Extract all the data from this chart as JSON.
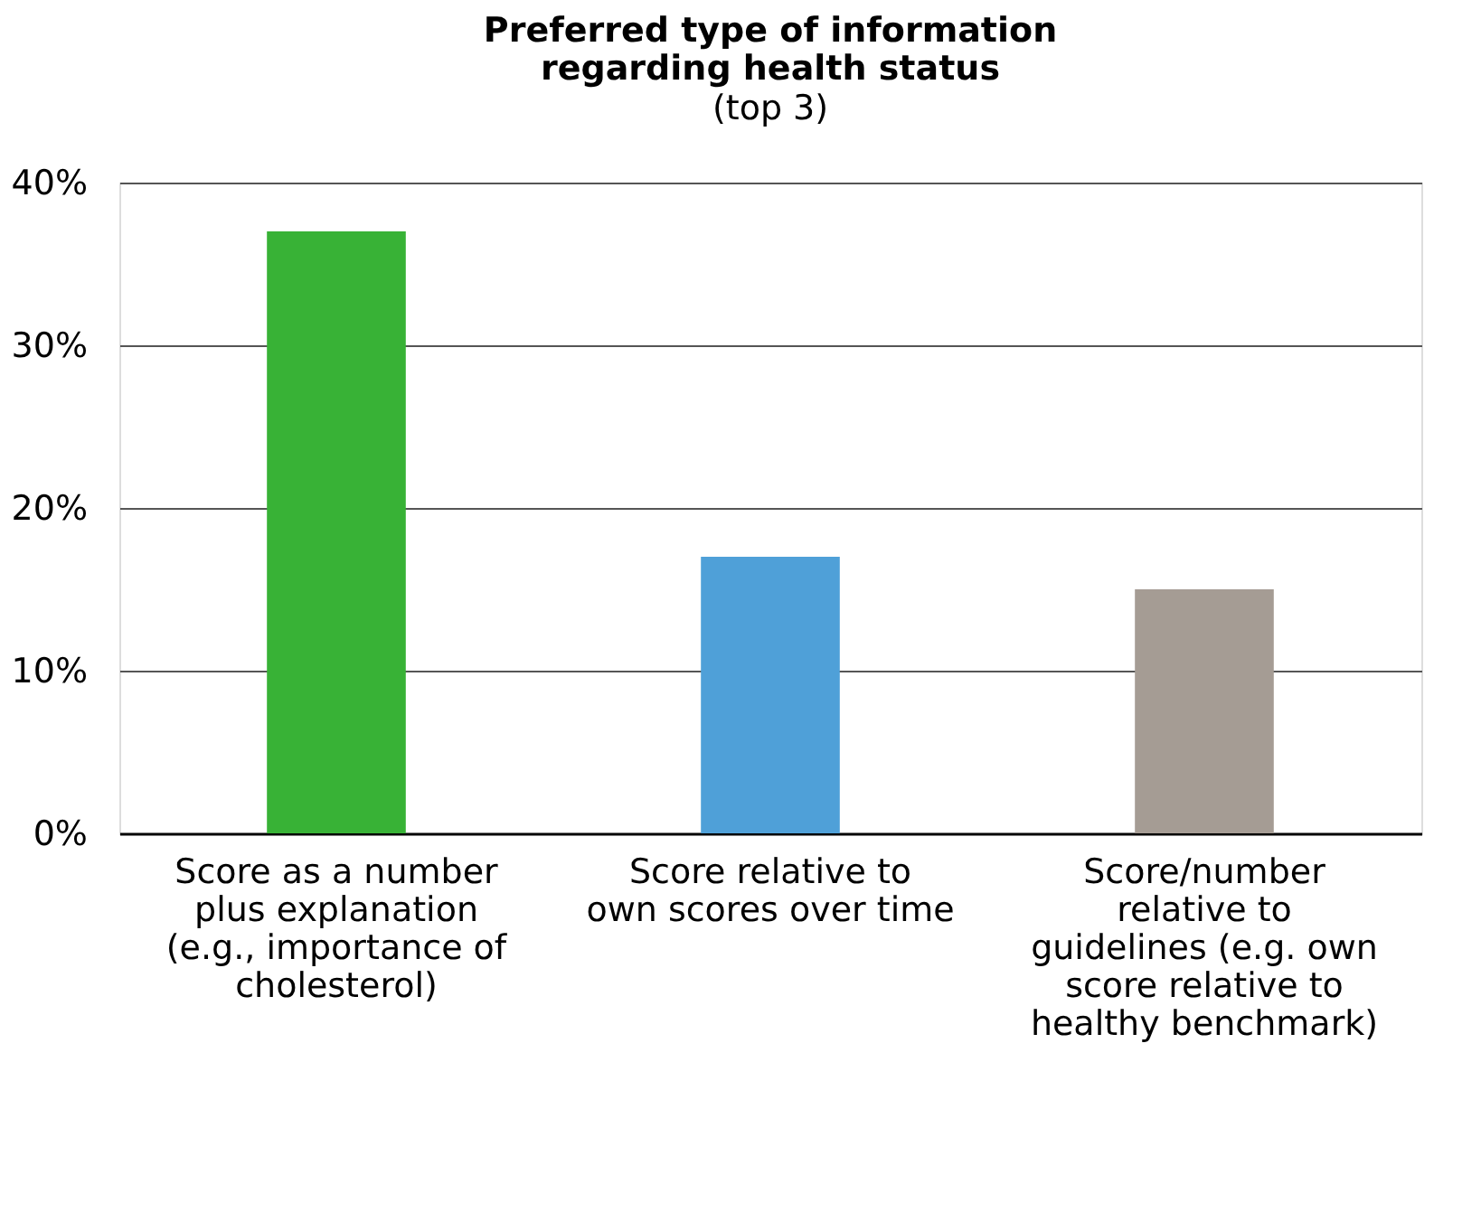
{
  "chart_data": {
    "type": "bar",
    "title": "Preferred type of information regarding health status",
    "subtitle": "(top 3)",
    "categories": [
      "Score as a number plus explanation (e.g., importance of cholesterol)",
      "Score relative to own scores over time",
      "Score/number relative to guidelines (e.g. own score relative to healthy benchmark)"
    ],
    "values": [
      37,
      17,
      15
    ],
    "colors": [
      "#38b236",
      "#4fa0d8",
      "#a59c94"
    ],
    "ylim": [
      0,
      40
    ],
    "yticks": [
      {
        "value": 0,
        "label": "0%"
      },
      {
        "value": 10,
        "label": "10%"
      },
      {
        "value": 20,
        "label": "20%"
      },
      {
        "value": 30,
        "label": "30%"
      },
      {
        "value": 40,
        "label": "40%"
      }
    ],
    "grid": "y",
    "legend": false
  }
}
